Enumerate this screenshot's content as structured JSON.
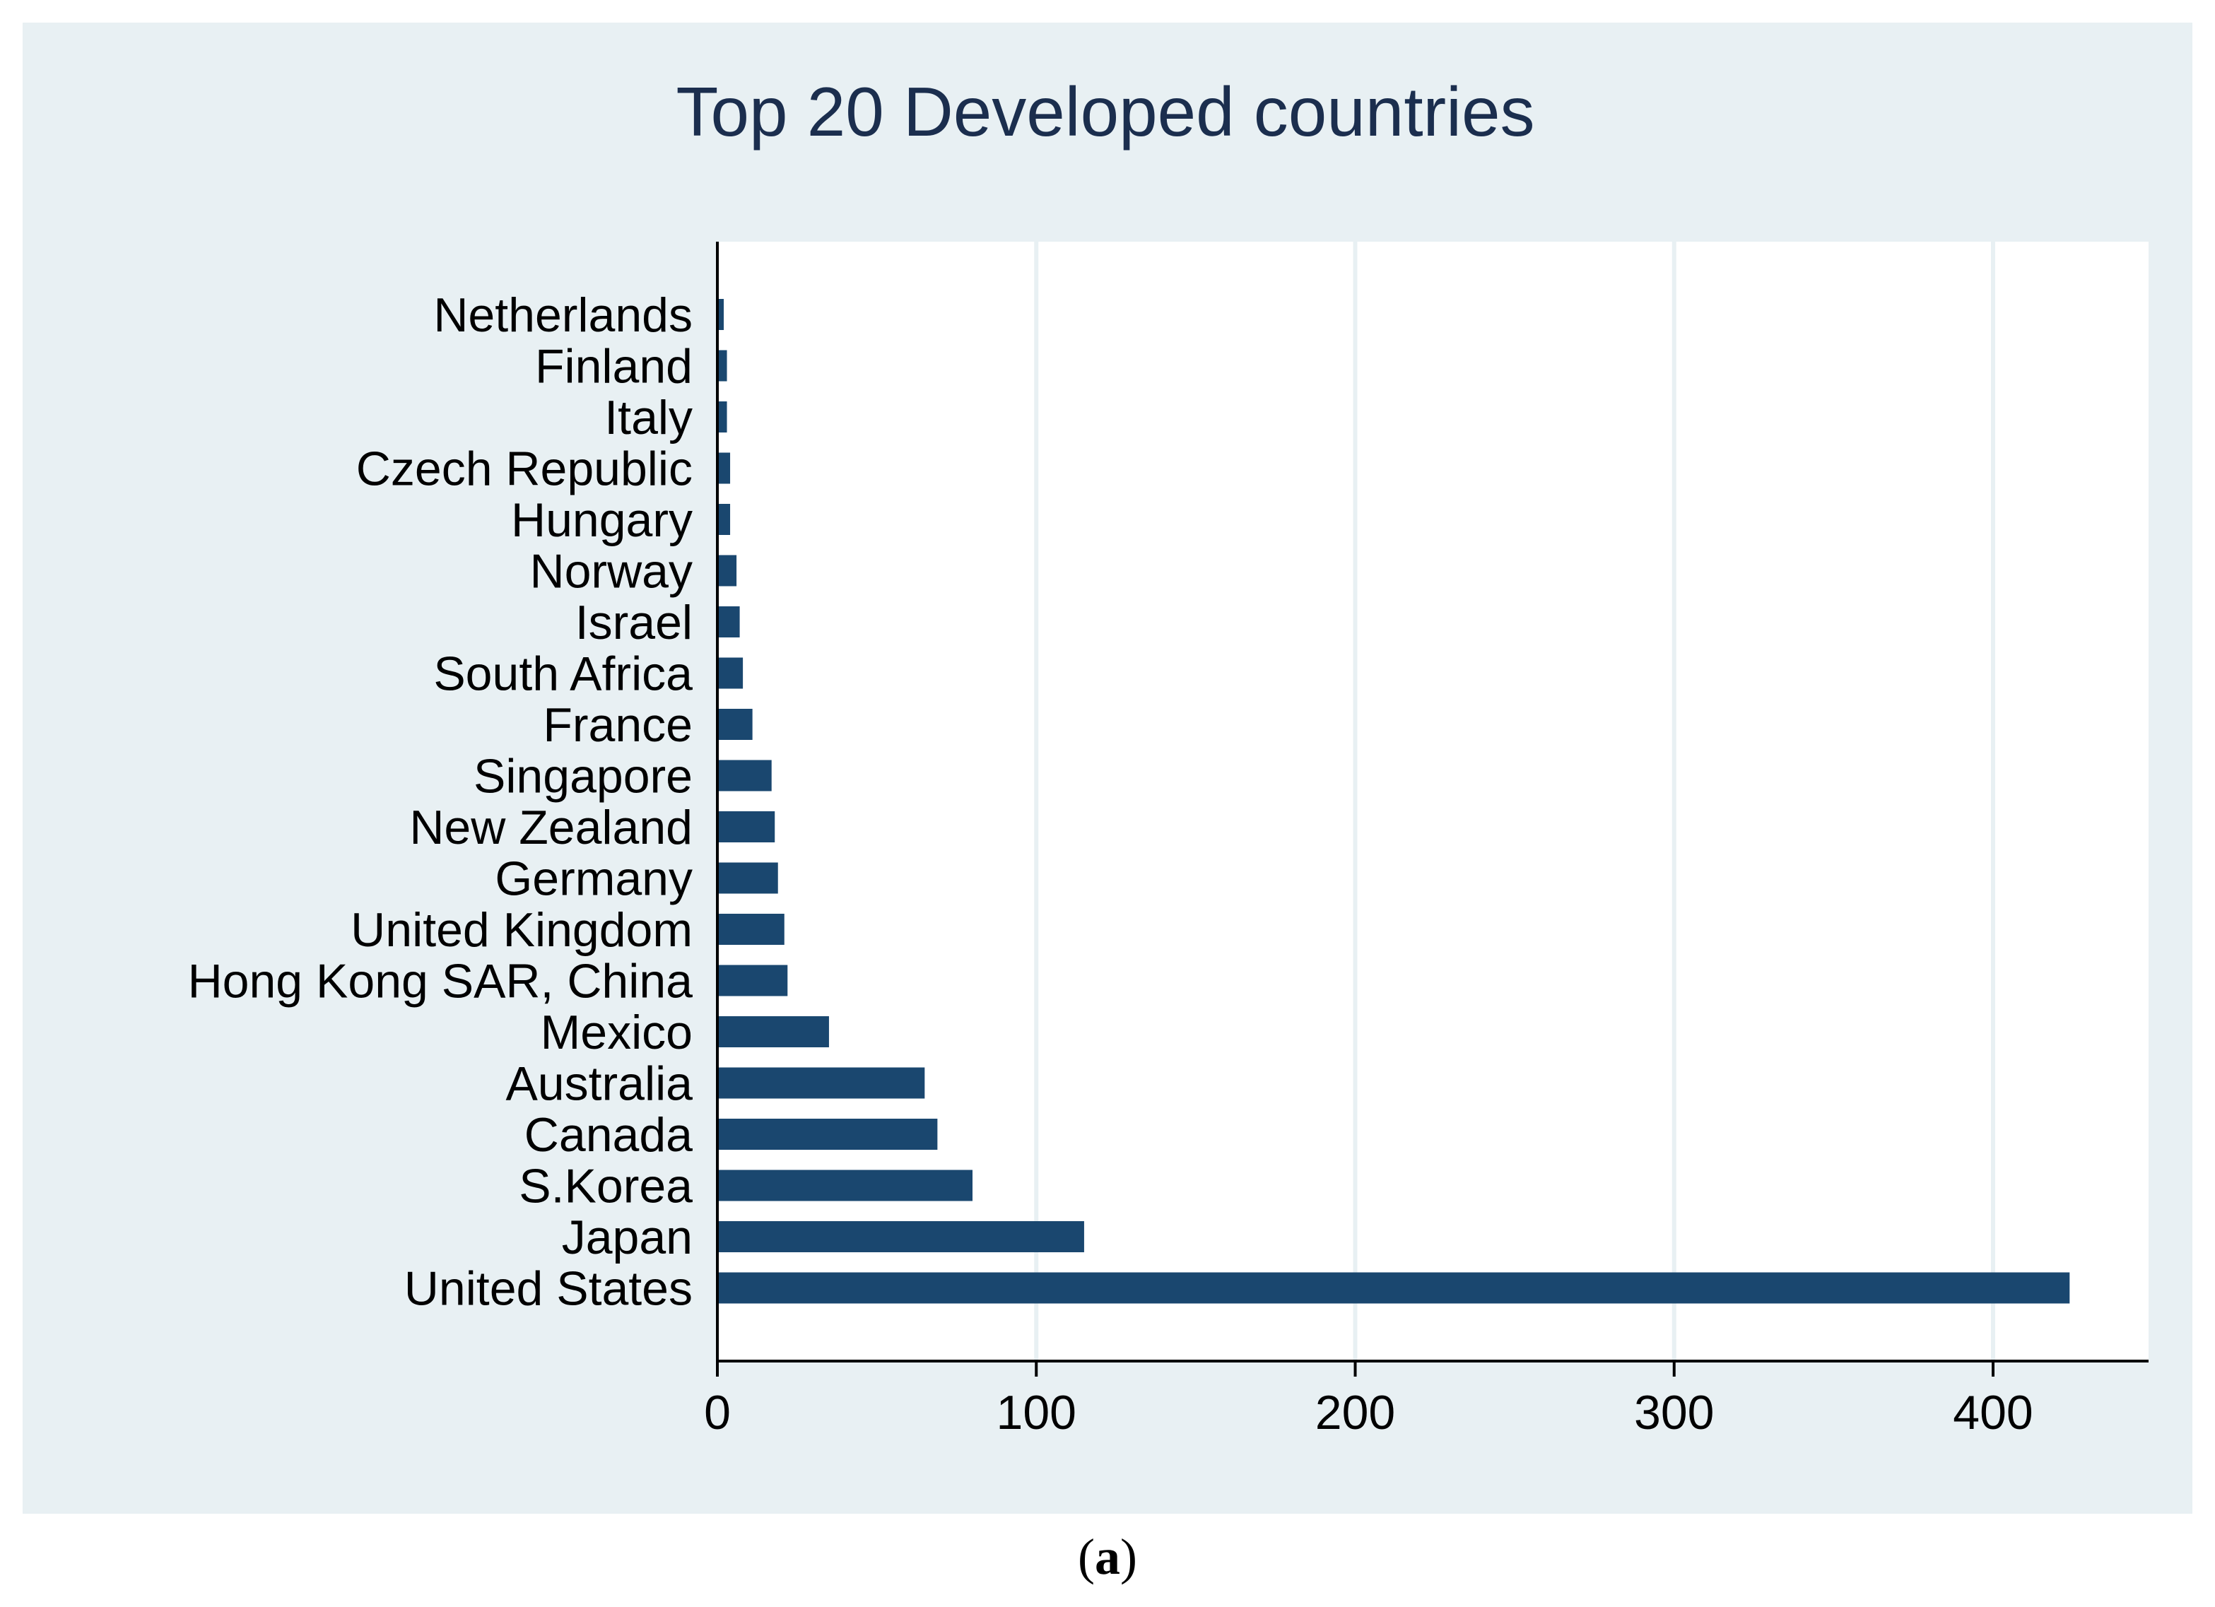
{
  "chart_data": {
    "type": "bar",
    "orientation": "horizontal",
    "title": "Top 20 Developed countries",
    "xlabel": "",
    "ylabel": "",
    "categories": [
      "United States",
      "Japan",
      "S.Korea",
      "Canada",
      "Australia",
      "Mexico",
      "Hong Kong SAR, China",
      "United Kingdom",
      "Germany",
      "New Zealand",
      "Singapore",
      "France",
      "South Africa",
      "Israel",
      "Norway",
      "Hungary",
      "Czech Republic",
      "Italy",
      "Finland",
      "Netherlands"
    ],
    "values": [
      424,
      115,
      80,
      69,
      65,
      35,
      22,
      21,
      19,
      18,
      17,
      11,
      8,
      7,
      6,
      4,
      4,
      3,
      3,
      2
    ],
    "xlim": [
      0,
      440
    ],
    "xticks": [
      0,
      100,
      200,
      300,
      400
    ],
    "grid": true,
    "legend": "none",
    "colors": {
      "bar": "#1a476f",
      "panel_background": "#e8f0f3",
      "plot_background": "#ffffff",
      "gridline": "#e8f0f3",
      "title": "#1b2e4e"
    }
  },
  "caption": {
    "open": "(",
    "letter": "a",
    "close": ")"
  }
}
